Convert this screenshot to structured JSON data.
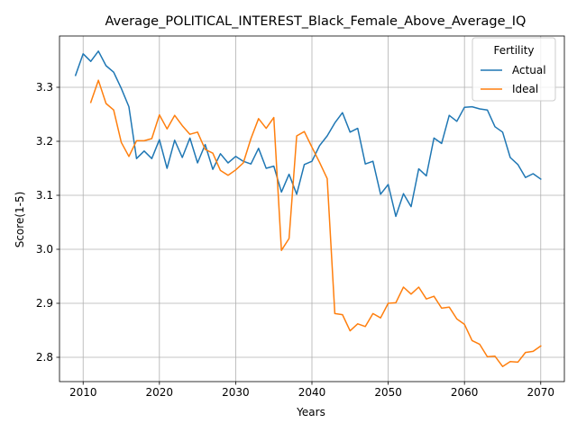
{
  "chart_data": {
    "type": "line",
    "title": "Average_POLITICAL_INTEREST_Black_Female_Above_Average_IQ",
    "xlabel": "Years",
    "ylabel": "Score(1-5)",
    "xlim": [
      2006.9,
      2073.1
    ],
    "ylim": [
      2.755,
      3.395
    ],
    "xticks": [
      2010,
      2020,
      2030,
      2040,
      2050,
      2060,
      2070
    ],
    "yticks": [
      2.8,
      2.9,
      3.0,
      3.1,
      3.2,
      3.3
    ],
    "xtick_labels": [
      "2010",
      "2020",
      "2030",
      "2040",
      "2050",
      "2060",
      "2070"
    ],
    "ytick_labels": [
      "2.8",
      "2.9",
      "3.0",
      "3.1",
      "3.2",
      "3.3"
    ],
    "grid": true,
    "legend": {
      "title": "Fertility",
      "placement": "top-right"
    },
    "series": [
      {
        "name": "Actual",
        "color": "#1f77b4",
        "x": [
          2009,
          2010,
          2011,
          2012,
          2013,
          2014,
          2015,
          2016,
          2017,
          2018,
          2019,
          2020,
          2021,
          2022,
          2023,
          2024,
          2025,
          2026,
          2027,
          2028,
          2029,
          2030,
          2031,
          2032,
          2033,
          2034,
          2035,
          2036,
          2037,
          2038,
          2039,
          2040,
          2041,
          2042,
          2043,
          2044,
          2045,
          2046,
          2047,
          2048,
          2049,
          2050,
          2051,
          2052,
          2053,
          2054,
          2055,
          2056,
          2057,
          2058,
          2059,
          2060,
          2061,
          2062,
          2063,
          2064,
          2065,
          2066,
          2067,
          2068,
          2069,
          2070
        ],
        "values": [
          3.322,
          3.362,
          3.348,
          3.367,
          3.34,
          3.328,
          3.298,
          3.264,
          3.168,
          3.182,
          3.168,
          3.203,
          3.15,
          3.202,
          3.17,
          3.206,
          3.16,
          3.194,
          3.148,
          3.177,
          3.16,
          3.172,
          3.163,
          3.158,
          3.187,
          3.15,
          3.154,
          3.106,
          3.139,
          3.102,
          3.157,
          3.163,
          3.192,
          3.21,
          3.234,
          3.253,
          3.217,
          3.224,
          3.158,
          3.163,
          3.102,
          3.12,
          3.061,
          3.103,
          3.079,
          3.149,
          3.136,
          3.206,
          3.196,
          3.248,
          3.237,
          3.263,
          3.264,
          3.26,
          3.258,
          3.227,
          3.217,
          3.17,
          3.157,
          3.133,
          3.14,
          3.13
        ]
      },
      {
        "name": "Ideal",
        "color": "#ff7f0e",
        "x": [
          2011,
          2012,
          2013,
          2014,
          2015,
          2016,
          2017,
          2018,
          2019,
          2020,
          2021,
          2022,
          2023,
          2024,
          2025,
          2026,
          2027,
          2028,
          2029,
          2030,
          2031,
          2032,
          2033,
          2034,
          2035,
          2036,
          2037,
          2038,
          2039,
          2040,
          2041,
          2042,
          2043,
          2044,
          2045,
          2046,
          2047,
          2048,
          2049,
          2050,
          2051,
          2052,
          2053,
          2054,
          2055,
          2056,
          2057,
          2058,
          2059,
          2060,
          2061,
          2062,
          2063,
          2064,
          2065,
          2066,
          2067,
          2068,
          2069,
          2070
        ],
        "values": [
          3.272,
          3.313,
          3.27,
          3.258,
          3.198,
          3.172,
          3.201,
          3.201,
          3.205,
          3.249,
          3.223,
          3.248,
          3.229,
          3.213,
          3.217,
          3.185,
          3.178,
          3.146,
          3.137,
          3.147,
          3.16,
          3.205,
          3.242,
          3.224,
          3.244,
          2.998,
          3.02,
          3.21,
          3.218,
          3.189,
          3.161,
          3.131,
          2.881,
          2.879,
          2.849,
          2.862,
          2.857,
          2.881,
          2.873,
          2.9,
          2.901,
          2.93,
          2.917,
          2.93,
          2.908,
          2.913,
          2.891,
          2.893,
          2.871,
          2.861,
          2.831,
          2.824,
          2.801,
          2.802,
          2.783,
          2.792,
          2.791,
          2.809,
          2.811,
          2.821
        ]
      }
    ]
  }
}
